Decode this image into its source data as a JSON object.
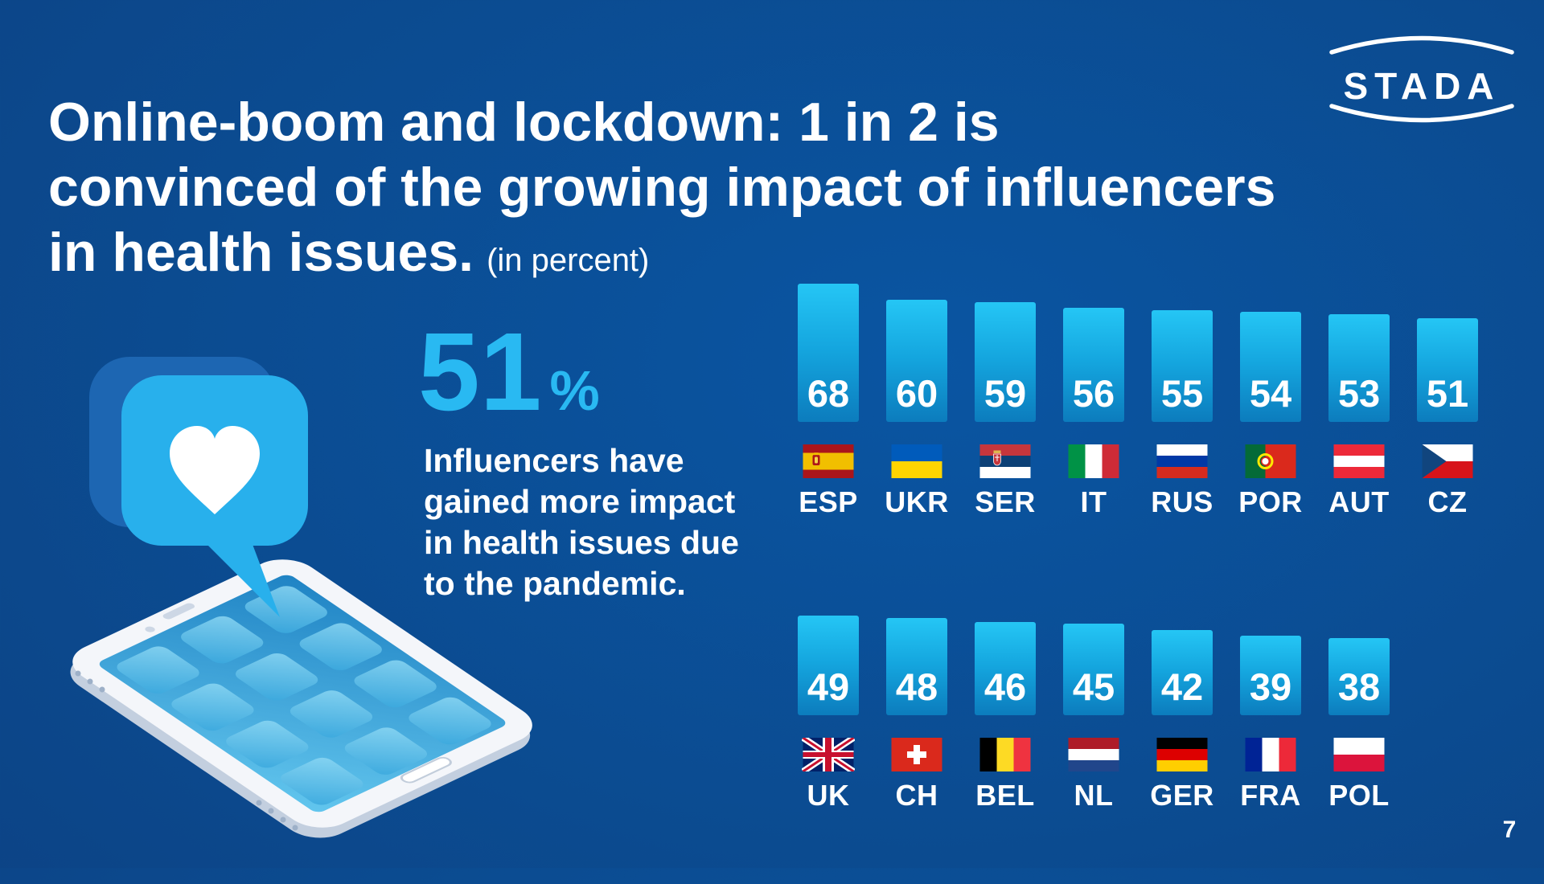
{
  "slide": {
    "title_lines": [
      "Online-boom and lockdown: 1 in 2 is",
      "convinced of the growing impact of influencers",
      "in health issues."
    ],
    "title_note": "(in percent)",
    "page_number": "7"
  },
  "logo": {
    "text": "STADA"
  },
  "stat": {
    "value": "51",
    "unit": "%",
    "description_lines": [
      "Influencers have",
      "gained more impact",
      "in health issues due",
      "to the pandemic."
    ]
  },
  "chart_data": {
    "type": "bar",
    "title": "Online-boom and lockdown: 1 in 2 is convinced of the growing impact of influencers in health issues. (in percent)",
    "unit": "percent",
    "orientation": "vertical",
    "value_labels_position": "inside-bar-bottom",
    "axes_shown": false,
    "grid": false,
    "legend": false,
    "flags_shown": true,
    "rows": [
      {
        "row": "top",
        "categories": [
          "ESP",
          "UKR",
          "SER",
          "IT",
          "RUS",
          "POR",
          "AUT",
          "CZ"
        ],
        "countries": [
          "Spain",
          "Ukraine",
          "Serbia",
          "Italy",
          "Russia",
          "Portugal",
          "Austria",
          "Czech Republic"
        ],
        "values": [
          68,
          60,
          59,
          56,
          55,
          54,
          53,
          51
        ]
      },
      {
        "row": "bottom",
        "categories": [
          "UK",
          "CH",
          "BEL",
          "NL",
          "GER",
          "FRA",
          "POL"
        ],
        "countries": [
          "United Kingdom",
          "Switzerland",
          "Belgium",
          "Netherlands",
          "Germany",
          "France",
          "Poland"
        ],
        "values": [
          49,
          48,
          46,
          45,
          42,
          39,
          38
        ]
      }
    ]
  },
  "colors": {
    "background_center": "#0a55a2",
    "background_edge": "#0e3a77",
    "accent_cyan": "#29b9f2",
    "bar_gradient_top": "#25c6f5",
    "bar_gradient_bottom": "#0c7cbd",
    "bubble_front": "#28b0ec",
    "bubble_back": "#1d66b2",
    "text_white": "#ffffff"
  }
}
